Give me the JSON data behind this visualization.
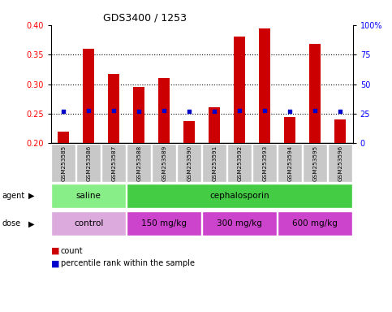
{
  "title": "GDS3400 / 1253",
  "samples": [
    "GSM253585",
    "GSM253586",
    "GSM253587",
    "GSM253588",
    "GSM253589",
    "GSM253590",
    "GSM253591",
    "GSM253592",
    "GSM253593",
    "GSM253594",
    "GSM253595",
    "GSM253596"
  ],
  "counts": [
    0.22,
    0.36,
    0.317,
    0.295,
    0.31,
    0.238,
    0.261,
    0.381,
    0.394,
    0.245,
    0.368,
    0.241
  ],
  "percentiles": [
    27,
    28,
    28,
    27,
    28,
    27,
    27,
    28,
    28,
    27,
    28,
    27
  ],
  "ylim_left": [
    0.2,
    0.4
  ],
  "ylim_right": [
    0,
    100
  ],
  "yticks_left": [
    0.2,
    0.25,
    0.3,
    0.35,
    0.4
  ],
  "yticks_right": [
    0,
    25,
    50,
    75,
    100
  ],
  "bar_color": "#cc0000",
  "dot_color": "#0000cc",
  "agent_groups": [
    {
      "label": "saline",
      "start": 0,
      "end": 3,
      "color": "#88ee88"
    },
    {
      "label": "cephalosporin",
      "start": 3,
      "end": 12,
      "color": "#44cc44"
    }
  ],
  "dose_groups": [
    {
      "label": "control",
      "start": 0,
      "end": 3,
      "color": "#ddaadd"
    },
    {
      "label": "150 mg/kg",
      "start": 3,
      "end": 6,
      "color": "#cc44cc"
    },
    {
      "label": "300 mg/kg",
      "start": 6,
      "end": 9,
      "color": "#cc44cc"
    },
    {
      "label": "600 mg/kg",
      "start": 9,
      "end": 12,
      "color": "#cc44cc"
    }
  ],
  "tick_label_bg": "#c8c8c8",
  "bar_width": 0.45
}
